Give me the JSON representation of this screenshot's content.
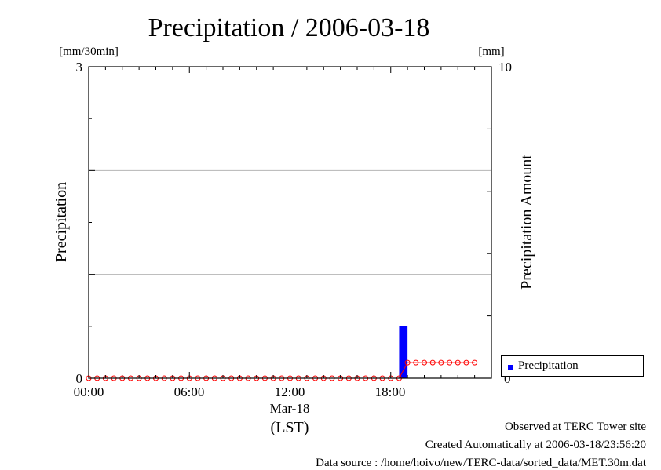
{
  "chart_data": {
    "type": "bar",
    "title": "Precipitation / 2006-03-18",
    "ylabel": "Precipitation",
    "ylabel_unit": "[mm/30min]",
    "y2label": "Precipitation Amount",
    "y2label_unit": "[mm]",
    "ylim": [
      0,
      3
    ],
    "y2lim": [
      0,
      10
    ],
    "y_ticks": [
      "0",
      "3"
    ],
    "y2_ticks": [
      "0",
      "10"
    ],
    "x_ticks": [
      "00:00",
      "06:00",
      "12:00",
      "18:00"
    ],
    "x_date_label": "Mar-18",
    "x_tz_label": "(LST)",
    "grid": true,
    "legend_position": "bottom-right",
    "x_hours": [
      0.0,
      0.5,
      1.0,
      1.5,
      2.0,
      2.5,
      3.0,
      3.5,
      4.0,
      4.5,
      5.0,
      5.5,
      6.0,
      6.5,
      7.0,
      7.5,
      8.0,
      8.5,
      9.0,
      9.5,
      10.0,
      10.5,
      11.0,
      11.5,
      12.0,
      12.5,
      13.0,
      13.5,
      14.0,
      14.5,
      15.0,
      15.5,
      16.0,
      16.5,
      17.0,
      17.5,
      18.0,
      18.5,
      19.0,
      19.5,
      20.0,
      20.5,
      21.0,
      21.5,
      22.0,
      22.5,
      23.0
    ],
    "series": [
      {
        "name": "Precipitation",
        "kind": "bar",
        "axis": "left",
        "color": "#0000ff",
        "values": [
          0,
          0,
          0,
          0,
          0,
          0,
          0,
          0,
          0,
          0,
          0,
          0,
          0,
          0,
          0,
          0,
          0,
          0,
          0,
          0,
          0,
          0,
          0,
          0,
          0,
          0,
          0,
          0,
          0,
          0,
          0,
          0,
          0,
          0,
          0,
          0,
          0,
          0.5,
          0,
          0,
          0,
          0,
          0,
          0,
          0,
          0,
          0
        ]
      },
      {
        "kind": "line",
        "axis": "right",
        "color": "#ff0000",
        "values": [
          0,
          0,
          0,
          0,
          0,
          0,
          0,
          0,
          0,
          0,
          0,
          0,
          0,
          0,
          0,
          0,
          0,
          0,
          0,
          0,
          0,
          0,
          0,
          0,
          0,
          0,
          0,
          0,
          0,
          0,
          0,
          0,
          0,
          0,
          0,
          0,
          0,
          0,
          0.5,
          0.5,
          0.5,
          0.5,
          0.5,
          0.5,
          0.5,
          0.5,
          0.5
        ]
      }
    ]
  },
  "legend": {
    "label": "Precipitation",
    "swatch_color": "#0000ff"
  },
  "footer": {
    "observed": "Observed at TERC Tower site",
    "created": "Created Automatically at 2006-03-18/23:56:20",
    "source": "Data source : /home/hoivo/new/TERC-data/sorted_data/MET.30m.dat"
  }
}
